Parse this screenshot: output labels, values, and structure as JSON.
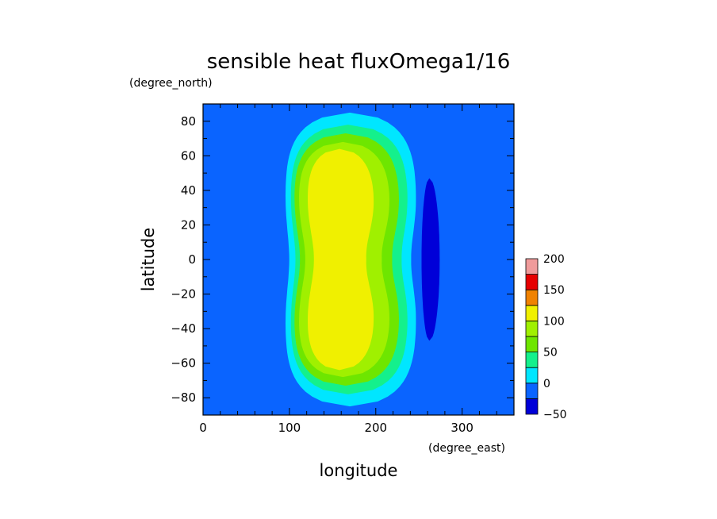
{
  "chart_data": {
    "type": "contour",
    "title": "sensible heat fluxOmega1/16",
    "xlabel": "longitude",
    "ylabel": "latitude",
    "x_unit": "(degree_east)",
    "y_unit": "(degree_north)",
    "xlim": [
      0,
      360
    ],
    "ylim": [
      -90,
      90
    ],
    "x_ticks": [
      "0",
      "100",
      "200",
      "300"
    ],
    "y_ticks": [
      "80",
      "60",
      "40",
      "20",
      "0",
      "−20",
      "−40",
      "−60",
      "−80"
    ],
    "background_color": "#0a64ff",
    "colorbar": {
      "levels": [
        -50,
        -25,
        0,
        25,
        50,
        75,
        100,
        125,
        150,
        175,
        200
      ],
      "labels": [
        "−50",
        "0",
        "50",
        "100",
        "150",
        "200"
      ],
      "colors": [
        "#0000d8",
        "#0a64ff",
        "#00e6ff",
        "#14f08c",
        "#6ee600",
        "#a0f000",
        "#f0f000",
        "#f08200",
        "#e60000",
        "#ef9b9b"
      ]
    },
    "regions": [
      {
        "level": "0 to 25",
        "color": "#00e6ff",
        "lat": [
          85,
          -85
        ],
        "lon_range": [
          95,
          245
        ]
      },
      {
        "level": "25 to 50",
        "color": "#14f08c",
        "lat": [
          78,
          -78
        ],
        "lon_range": [
          100,
          235
        ]
      },
      {
        "level": "50 to 75",
        "color": "#6ee600",
        "lat": [
          73,
          -73
        ],
        "lon_range": [
          105,
          225
        ]
      },
      {
        "level": "75 to 100",
        "color": "#a0f000",
        "lat": [
          68,
          -68
        ],
        "lon_range": [
          110,
          215
        ]
      },
      {
        "level": "100 to 125",
        "color": "#f0f000",
        "lat": [
          64,
          -64
        ],
        "lon_range": [
          120,
          195
        ]
      },
      {
        "level": "-50 to -25",
        "color": "#0000d8",
        "lat": [
          47,
          -47
        ],
        "lon_range": [
          250,
          275
        ]
      }
    ]
  }
}
